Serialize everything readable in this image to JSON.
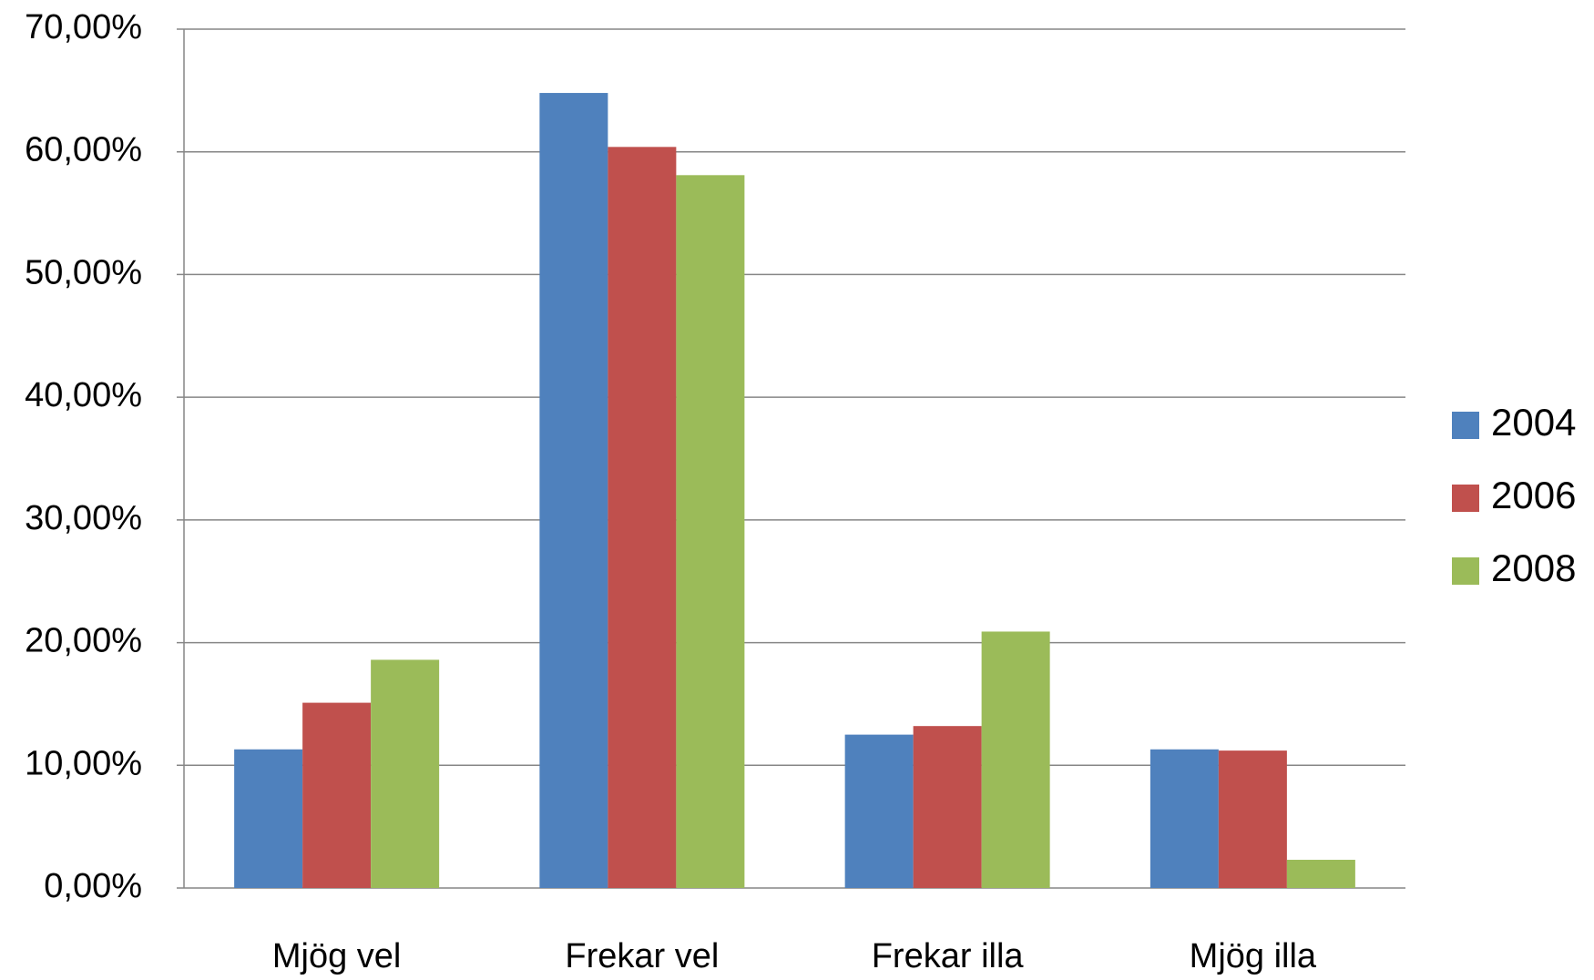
{
  "chart_data": {
    "type": "bar",
    "categories": [
      "Mjög vel",
      "Frekar vel",
      "Frekar illa",
      "Mjög illa"
    ],
    "series": [
      {
        "name": "2004",
        "color": "#4f81bd",
        "values": [
          11.3,
          64.8,
          12.5,
          11.3
        ]
      },
      {
        "name": "2006",
        "color": "#c0504d",
        "values": [
          15.1,
          60.4,
          13.2,
          11.2
        ]
      },
      {
        "name": "2008",
        "color": "#9bbb59",
        "values": [
          18.6,
          58.1,
          20.9,
          2.3
        ]
      }
    ],
    "ylim": [
      0,
      70
    ],
    "yticks": [
      {
        "value": 0,
        "label": "0,00%"
      },
      {
        "value": 10,
        "label": "10,00%"
      },
      {
        "value": 20,
        "label": "20,00%"
      },
      {
        "value": 30,
        "label": "30,00%"
      },
      {
        "value": 40,
        "label": "40,00%"
      },
      {
        "value": 50,
        "label": "50,00%"
      },
      {
        "value": 60,
        "label": "60,00%"
      },
      {
        "value": 70,
        "label": "70,00%"
      }
    ],
    "grid": true,
    "legend": "right"
  }
}
